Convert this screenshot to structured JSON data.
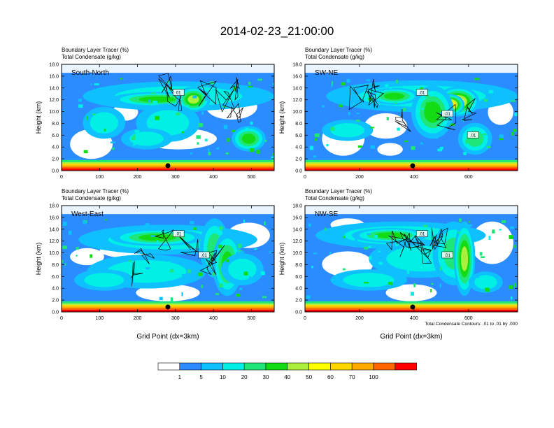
{
  "title": "2014-02-23_21:00:00",
  "colors": {
    "palette": [
      "#ffffff",
      "#2a8cff",
      "#0fc0ff",
      "#00f0e6",
      "#1ee678",
      "#14dc14",
      "#aaf03c",
      "#ffff00",
      "#ffd700",
      "#ffaa00",
      "#ff6400",
      "#ff0000"
    ]
  },
  "colorbar": {
    "labels": [
      "1",
      "5",
      "10",
      "20",
      "30",
      "40",
      "50",
      "60",
      "70",
      "100"
    ]
  },
  "chart_data": [
    {
      "type": "heatmap",
      "title_line1": "Boundary Layer Tracer   (%)",
      "title_line2": "Total Condensate   (g/kg)",
      "panel_label": "South-North",
      "ylabel": "Height (km)",
      "xlabel": "",
      "xlim": [
        0,
        560
      ],
      "ylim": [
        0,
        18
      ],
      "xticks": [
        "0",
        "100",
        "200",
        "300",
        "400",
        "500"
      ],
      "yticks": [
        "0.0",
        "2.0",
        "4.0",
        "6.0",
        "8.0",
        "10.0",
        "12.0",
        "14.0",
        "16.0",
        "18.0"
      ],
      "marker_x": 280,
      "contour_labels": [
        "01"
      ]
    },
    {
      "type": "heatmap",
      "title_line1": "Boundary Layer Tracer   (%)",
      "title_line2": "Total Condensate   (g/kg)",
      "panel_label": "SW-NE",
      "ylabel": "Height (km)",
      "xlabel": "",
      "xlim": [
        0,
        780
      ],
      "ylim": [
        0,
        18
      ],
      "xticks": [
        "0",
        "200",
        "400",
        "600"
      ],
      "yticks": [
        "0.0",
        "2.0",
        "4.0",
        "6.0",
        "8.0",
        "10.0",
        "12.0",
        "14.0",
        "16.0",
        "18.0"
      ],
      "marker_x": 395,
      "contour_labels": [
        ".01",
        ".01",
        ".01"
      ]
    },
    {
      "type": "heatmap",
      "title_line1": "Boundary Layer Tracer   (%)",
      "title_line2": "Total Condensate   (g/kg)",
      "panel_label": "West-East",
      "ylabel": "Height (km)",
      "xlabel": "Grid Point (dx=3km)",
      "xlim": [
        0,
        560
      ],
      "ylim": [
        0,
        18
      ],
      "xticks": [
        "0",
        "100",
        "200",
        "300",
        "400",
        "500"
      ],
      "yticks": [
        "0.0",
        "2.0",
        "4.0",
        "6.0",
        "8.0",
        "10.0",
        "12.0",
        "14.0",
        "16.0",
        "18.0"
      ],
      "marker_x": 280,
      "contour_labels": [
        ".01",
        ".01"
      ]
    },
    {
      "type": "heatmap",
      "title_line1": "Boundary Layer Tracer   (%)",
      "title_line2": "Total Condensate   (g/kg)",
      "panel_label": "NW-SE",
      "ylabel": "Height (km)",
      "xlabel": "Grid Point (dx=3km)",
      "xlim": [
        0,
        780
      ],
      "ylim": [
        0,
        18
      ],
      "xticks": [
        "0",
        "200",
        "400",
        "600"
      ],
      "yticks": [
        "0.0",
        "2.0",
        "4.0",
        "6.0",
        "8.0",
        "10.0",
        "12.0",
        "14.0",
        "16.0",
        "18.0"
      ],
      "marker_x": 395,
      "contour_labels": [
        ".01",
        ".01"
      ],
      "footnote": "Total Condensate Contours: .01 to .01 by .000"
    }
  ]
}
